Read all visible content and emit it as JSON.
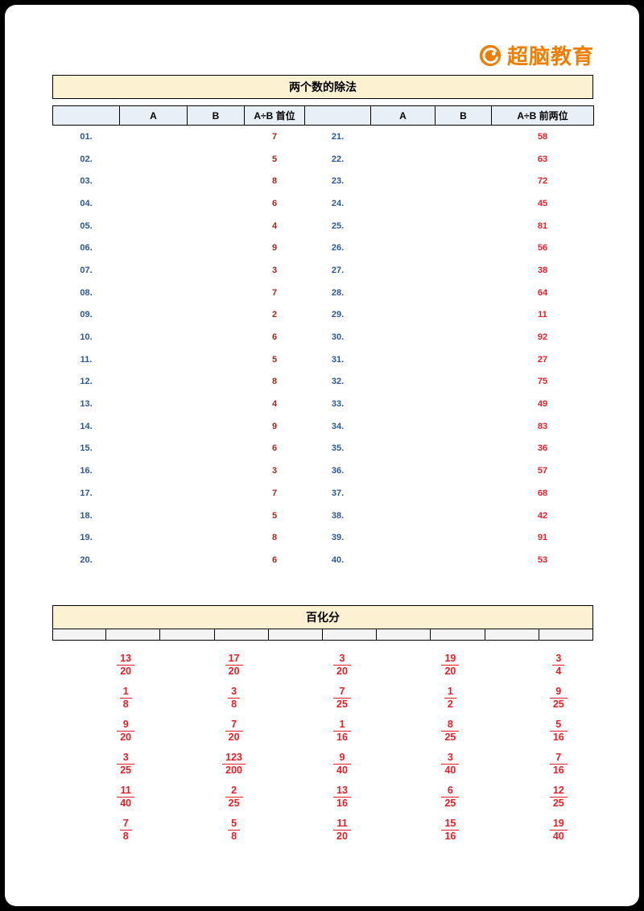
{
  "brand": {
    "logo_text": "超脑教育"
  },
  "division_table": {
    "title": "两个数的除法",
    "headers": [
      "",
      "A",
      "B",
      "A÷B 首位",
      "",
      "A",
      "B",
      "A÷B 前两位"
    ],
    "rows": [
      {
        "left_no": "01.",
        "left_ans": "7",
        "right_no": "21.",
        "right_ans": "58"
      },
      {
        "left_no": "02.",
        "left_ans": "5",
        "right_no": "22.",
        "right_ans": "63"
      },
      {
        "left_no": "03.",
        "left_ans": "8",
        "right_no": "23.",
        "right_ans": "72"
      },
      {
        "left_no": "04.",
        "left_ans": "6",
        "right_no": "24.",
        "right_ans": "45"
      },
      {
        "left_no": "05.",
        "left_ans": "4",
        "right_no": "25.",
        "right_ans": "81"
      },
      {
        "left_no": "06.",
        "left_ans": "9",
        "right_no": "26.",
        "right_ans": "56"
      },
      {
        "left_no": "07.",
        "left_ans": "3",
        "right_no": "27.",
        "right_ans": "38"
      },
      {
        "left_no": "08.",
        "left_ans": "7",
        "right_no": "28.",
        "right_ans": "64"
      },
      {
        "left_no": "09.",
        "left_ans": "2",
        "right_no": "29.",
        "right_ans": "11"
      },
      {
        "left_no": "10.",
        "left_ans": "6",
        "right_no": "30.",
        "right_ans": "92"
      },
      {
        "left_no": "11.",
        "left_ans": "5",
        "right_no": "31.",
        "right_ans": "27"
      },
      {
        "left_no": "12.",
        "left_ans": "8",
        "right_no": "32.",
        "right_ans": "75"
      },
      {
        "left_no": "13.",
        "left_ans": "4",
        "right_no": "33.",
        "right_ans": "49"
      },
      {
        "left_no": "14.",
        "left_ans": "9",
        "right_no": "34.",
        "right_ans": "83"
      },
      {
        "left_no": "15.",
        "left_ans": "6",
        "right_no": "35.",
        "right_ans": "36"
      },
      {
        "left_no": "16.",
        "left_ans": "3",
        "right_no": "36.",
        "right_ans": "57"
      },
      {
        "left_no": "17.",
        "left_ans": "7",
        "right_no": "37.",
        "right_ans": "68"
      },
      {
        "left_no": "18.",
        "left_ans": "5",
        "right_no": "38.",
        "right_ans": "42"
      },
      {
        "left_no": "19.",
        "left_ans": "8",
        "right_no": "39.",
        "right_ans": "91"
      },
      {
        "left_no": "20.",
        "left_ans": "6",
        "right_no": "40.",
        "right_ans": "53"
      }
    ]
  },
  "percent_table": {
    "title": "百化分",
    "answers": [
      [
        {
          "n": "13",
          "d": "20"
        },
        {
          "n": "1",
          "d": "8"
        },
        {
          "n": "9",
          "d": "20"
        },
        {
          "n": "3",
          "d": "25"
        },
        {
          "n": "11",
          "d": "40"
        },
        {
          "n": "7",
          "d": "8"
        }
      ],
      [
        {
          "n": "17",
          "d": "20"
        },
        {
          "n": "3",
          "d": "8"
        },
        {
          "n": "7",
          "d": "20"
        },
        {
          "n": "123",
          "d": "200"
        },
        {
          "n": "2",
          "d": "25"
        },
        {
          "n": "5",
          "d": "8"
        }
      ],
      [
        {
          "n": "3",
          "d": "20"
        },
        {
          "n": "7",
          "d": "25"
        },
        {
          "n": "1",
          "d": "16"
        },
        {
          "n": "9",
          "d": "40"
        },
        {
          "n": "13",
          "d": "16"
        },
        {
          "n": "11",
          "d": "20"
        }
      ],
      [
        {
          "n": "19",
          "d": "20"
        },
        {
          "n": "1",
          "d": "2"
        },
        {
          "n": "8",
          "d": "25"
        },
        {
          "n": "3",
          "d": "40"
        },
        {
          "n": "6",
          "d": "25"
        },
        {
          "n": "15",
          "d": "16"
        }
      ],
      [
        {
          "n": "3",
          "d": "4"
        },
        {
          "n": "9",
          "d": "25"
        },
        {
          "n": "5",
          "d": "16"
        },
        {
          "n": "7",
          "d": "16"
        },
        {
          "n": "12",
          "d": "25"
        },
        {
          "n": "19",
          "d": "40"
        }
      ]
    ]
  }
}
